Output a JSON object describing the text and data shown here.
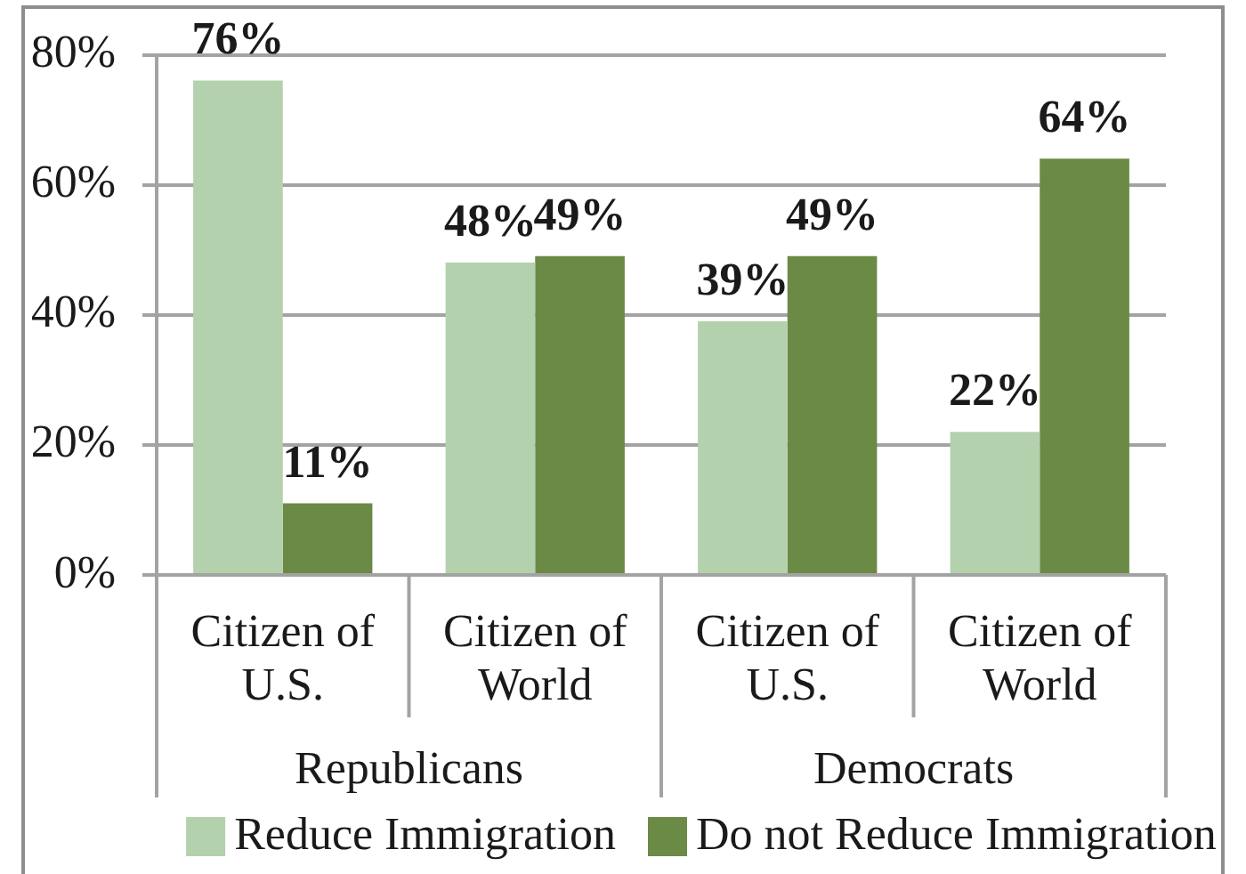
{
  "chart_data": {
    "type": "bar",
    "categories": [
      "Citizen of U.S.",
      "Citizen of World",
      "Citizen of U.S.",
      "Citizen of World"
    ],
    "annotations": [
      "Republicans",
      "Democrats"
    ],
    "series": [
      {
        "name": "Reduce Immigration",
        "color": "#b3d1ad",
        "values": [
          76,
          48,
          39,
          22
        ],
        "value_labels": [
          "76%",
          "48%",
          "39%",
          "22%"
        ]
      },
      {
        "name": "Do not Reduce Immigration",
        "color": "#6a8a46",
        "values": [
          11,
          49,
          49,
          64
        ],
        "value_labels": [
          "11%",
          "49%",
          "49%",
          "64%"
        ]
      }
    ],
    "ylim": [
      0,
      80
    ],
    "yticks": [
      {
        "value": 0,
        "label": "0%"
      },
      {
        "value": 20,
        "label": "20%"
      },
      {
        "value": 40,
        "label": "40%"
      },
      {
        "value": 60,
        "label": "60%"
      },
      {
        "value": 80,
        "label": "80%"
      }
    ],
    "grid": "y",
    "legend": "bottom"
  }
}
